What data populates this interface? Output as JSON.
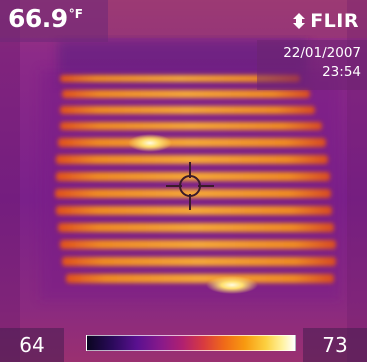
{
  "reading": {
    "value": "66.9",
    "unit": "°F"
  },
  "brand": {
    "name": "FLIR"
  },
  "timestamp": {
    "date": "22/01/2007",
    "time": "23:54"
  },
  "scale": {
    "min": "64",
    "max": "73"
  },
  "icons": {
    "crosshair": "crosshair-icon",
    "brand_mark": "flir-logo-icon"
  },
  "colors": {
    "cold": "#2a0a5a",
    "mid": "#b02070",
    "warm": "#f06a18",
    "hot": "#fff2a0"
  }
}
